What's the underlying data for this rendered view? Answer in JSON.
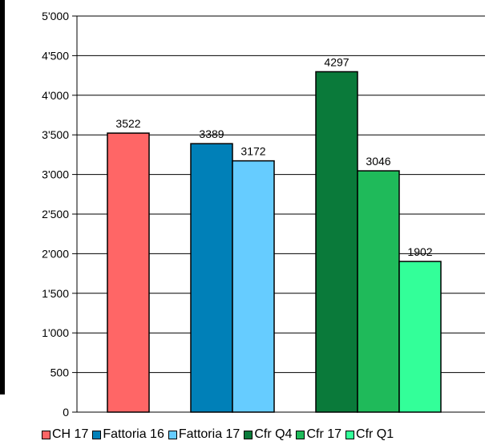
{
  "chart_data": {
    "type": "bar",
    "title": "",
    "xlabel": "",
    "ylabel": "",
    "ylim": [
      0,
      5000
    ],
    "yticks": [
      {
        "value": 0,
        "label": "0"
      },
      {
        "value": 500,
        "label": "500"
      },
      {
        "value": 1000,
        "label": "1'000"
      },
      {
        "value": 1500,
        "label": "1'500"
      },
      {
        "value": 2000,
        "label": "2'000"
      },
      {
        "value": 2500,
        "label": "2'500"
      },
      {
        "value": 3000,
        "label": "3'000"
      },
      {
        "value": 3500,
        "label": "3'500"
      },
      {
        "value": 4000,
        "label": "4'000"
      },
      {
        "value": 4500,
        "label": "4'500"
      },
      {
        "value": 5000,
        "label": "5'000"
      }
    ],
    "grid": true,
    "legend_position": "bottom",
    "groups": [
      {
        "series": [
          "CH 17"
        ]
      },
      {
        "series": [
          "Fattoria 16",
          "Fattoria 17"
        ]
      },
      {
        "series": [
          "Cfr Q4",
          "Cfr 17",
          "Cfr Q1"
        ]
      }
    ],
    "series": [
      {
        "name": "CH 17",
        "value": 3522,
        "color": "#ff6666"
      },
      {
        "name": "Fattoria 16",
        "value": 3389,
        "color": "#0080b8"
      },
      {
        "name": "Fattoria 17",
        "value": 3172,
        "color": "#66ccff"
      },
      {
        "name": "Cfr Q4",
        "value": 4297,
        "color": "#0a7a3a"
      },
      {
        "name": "Cfr 17",
        "value": 3046,
        "color": "#1fba5a"
      },
      {
        "name": "Cfr Q1",
        "value": 1902,
        "color": "#33ff99"
      }
    ]
  }
}
